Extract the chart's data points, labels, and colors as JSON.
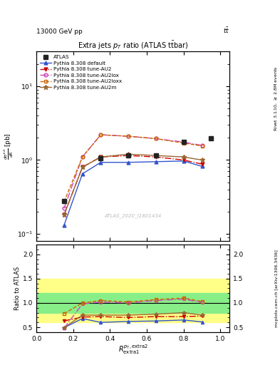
{
  "title": "Extra jets $p_{T}$ ratio (ATLAS t$\\bar{t}$bar)",
  "top_left_label": "13000 GeV pp",
  "top_right_label": "t$\\bar{t}$",
  "watermark": "ATLAS_2020_I1801434",
  "right_label_top": "Rivet 3.1.10, $\\geq$ 2.8M events",
  "right_label_bottom": "mcplots.cern.ch [arXiv:1306.3436]",
  "x": [
    0.15,
    0.25,
    0.35,
    0.5,
    0.65,
    0.8,
    0.9
  ],
  "atlas_x": [
    0.15,
    0.35,
    0.5,
    0.65,
    0.8,
    0.95
  ],
  "atlas_y_main": [
    0.28,
    1.05,
    1.15,
    1.15,
    1.75,
    1.95
  ],
  "default_y": [
    0.13,
    0.65,
    0.93,
    0.93,
    0.95,
    0.97,
    0.82
  ],
  "au2_y": [
    0.18,
    0.8,
    1.1,
    1.15,
    1.1,
    1.0,
    0.88
  ],
  "au2lox_y": [
    0.22,
    1.1,
    2.2,
    2.1,
    1.95,
    1.75,
    1.58
  ],
  "au2loxx_y": [
    0.27,
    1.1,
    2.2,
    2.1,
    1.95,
    1.7,
    1.55
  ],
  "au2m_y": [
    0.18,
    0.8,
    1.1,
    1.2,
    1.15,
    1.1,
    1.0
  ],
  "ratio_default": [
    0.49,
    0.68,
    0.6,
    0.62,
    0.63,
    0.65,
    0.61
  ],
  "ratio_au2": [
    0.63,
    0.71,
    0.72,
    0.7,
    0.72,
    0.72,
    0.73
  ],
  "ratio_au2lox": [
    0.48,
    0.98,
    1.02,
    1.0,
    1.05,
    1.08,
    1.01
  ],
  "ratio_au2loxx": [
    0.78,
    1.0,
    1.05,
    1.02,
    1.07,
    1.1,
    1.03
  ],
  "ratio_au2m": [
    0.49,
    0.75,
    0.75,
    0.75,
    0.77,
    0.8,
    0.75
  ],
  "band_green_lo": 0.8,
  "band_green_hi": 1.2,
  "band_yellow_lo": 0.6,
  "band_yellow_hi": 1.5,
  "color_atlas": "#222222",
  "color_default": "#3355cc",
  "color_au2": "#cc0000",
  "color_au2lox": "#cc44bb",
  "color_au2loxx": "#cc6600",
  "color_au2m": "#996633",
  "ylim_main": [
    0.08,
    30
  ],
  "ylim_ratio": [
    0.4,
    2.2
  ],
  "xlim": [
    0.0,
    1.05
  ]
}
